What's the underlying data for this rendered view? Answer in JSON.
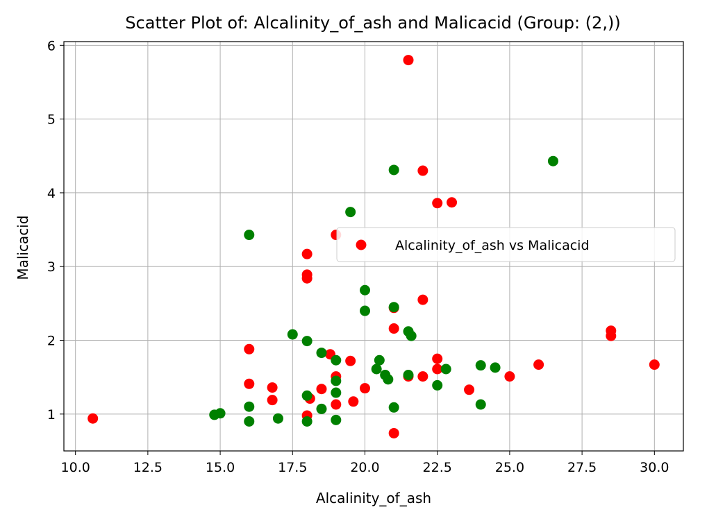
{
  "chart_data": {
    "type": "scatter",
    "title": "Scatter Plot of: Alcalinity_of_ash and Malicacid (Group: (2,))",
    "xlabel": "Alcalinity_of_ash",
    "ylabel": "Malicacid",
    "xlim": [
      9.6,
      31.0
    ],
    "ylim": [
      0.5,
      6.05
    ],
    "xticks": [
      "10.0",
      "12.5",
      "15.0",
      "17.5",
      "20.0",
      "22.5",
      "25.0",
      "27.5",
      "30.0"
    ],
    "yticks": [
      "1",
      "2",
      "3",
      "4",
      "5",
      "6"
    ],
    "grid": true,
    "legend_position": "center-right",
    "legend": [
      "Alcalinity_of_ash vs Malicacid"
    ],
    "colors": {
      "red": "#ff0000",
      "green": "#008000"
    },
    "series": [
      {
        "name": "Alcalinity_of_ash vs Malicacid",
        "color": "#ff0000",
        "points": [
          [
            10.6,
            0.94
          ],
          [
            16.0,
            1.88
          ],
          [
            16.0,
            1.41
          ],
          [
            16.8,
            1.36
          ],
          [
            16.8,
            1.19
          ],
          [
            18.0,
            3.17
          ],
          [
            18.0,
            2.89
          ],
          [
            18.0,
            2.84
          ],
          [
            18.0,
            0.98
          ],
          [
            18.1,
            1.21
          ],
          [
            18.5,
            1.34
          ],
          [
            18.8,
            1.81
          ],
          [
            19.0,
            3.43
          ],
          [
            19.0,
            1.51
          ],
          [
            19.0,
            1.13
          ],
          [
            19.5,
            1.72
          ],
          [
            19.6,
            1.17
          ],
          [
            20.0,
            1.35
          ],
          [
            21.0,
            2.44
          ],
          [
            21.0,
            2.16
          ],
          [
            21.0,
            0.74
          ],
          [
            21.5,
            5.8
          ],
          [
            21.5,
            1.51
          ],
          [
            22.0,
            4.3
          ],
          [
            22.0,
            2.55
          ],
          [
            22.0,
            1.51
          ],
          [
            22.5,
            3.86
          ],
          [
            22.5,
            1.75
          ],
          [
            22.5,
            1.61
          ],
          [
            23.0,
            3.87
          ],
          [
            23.6,
            1.33
          ],
          [
            25.0,
            1.51
          ],
          [
            26.0,
            1.67
          ],
          [
            28.5,
            2.13
          ],
          [
            28.5,
            2.06
          ],
          [
            30.0,
            1.67
          ]
        ]
      },
      {
        "color": "#008000",
        "points": [
          [
            14.8,
            0.99
          ],
          [
            15.0,
            1.01
          ],
          [
            16.0,
            3.43
          ],
          [
            16.0,
            1.1
          ],
          [
            16.0,
            0.9
          ],
          [
            17.0,
            0.94
          ],
          [
            17.5,
            2.08
          ],
          [
            18.0,
            1.99
          ],
          [
            18.0,
            1.25
          ],
          [
            18.0,
            0.9
          ],
          [
            18.5,
            1.83
          ],
          [
            18.5,
            1.07
          ],
          [
            19.0,
            1.73
          ],
          [
            19.0,
            1.45
          ],
          [
            19.0,
            1.29
          ],
          [
            19.0,
            0.92
          ],
          [
            19.5,
            3.74
          ],
          [
            20.0,
            2.68
          ],
          [
            20.0,
            2.4
          ],
          [
            20.4,
            1.61
          ],
          [
            20.5,
            1.73
          ],
          [
            20.7,
            1.53
          ],
          [
            20.8,
            1.47
          ],
          [
            21.0,
            4.31
          ],
          [
            21.0,
            2.45
          ],
          [
            21.0,
            1.09
          ],
          [
            21.5,
            2.12
          ],
          [
            21.5,
            1.53
          ],
          [
            21.6,
            2.06
          ],
          [
            22.5,
            1.39
          ],
          [
            22.8,
            1.61
          ],
          [
            24.0,
            1.66
          ],
          [
            24.0,
            1.13
          ],
          [
            24.5,
            1.63
          ],
          [
            26.5,
            4.43
          ]
        ]
      }
    ]
  }
}
